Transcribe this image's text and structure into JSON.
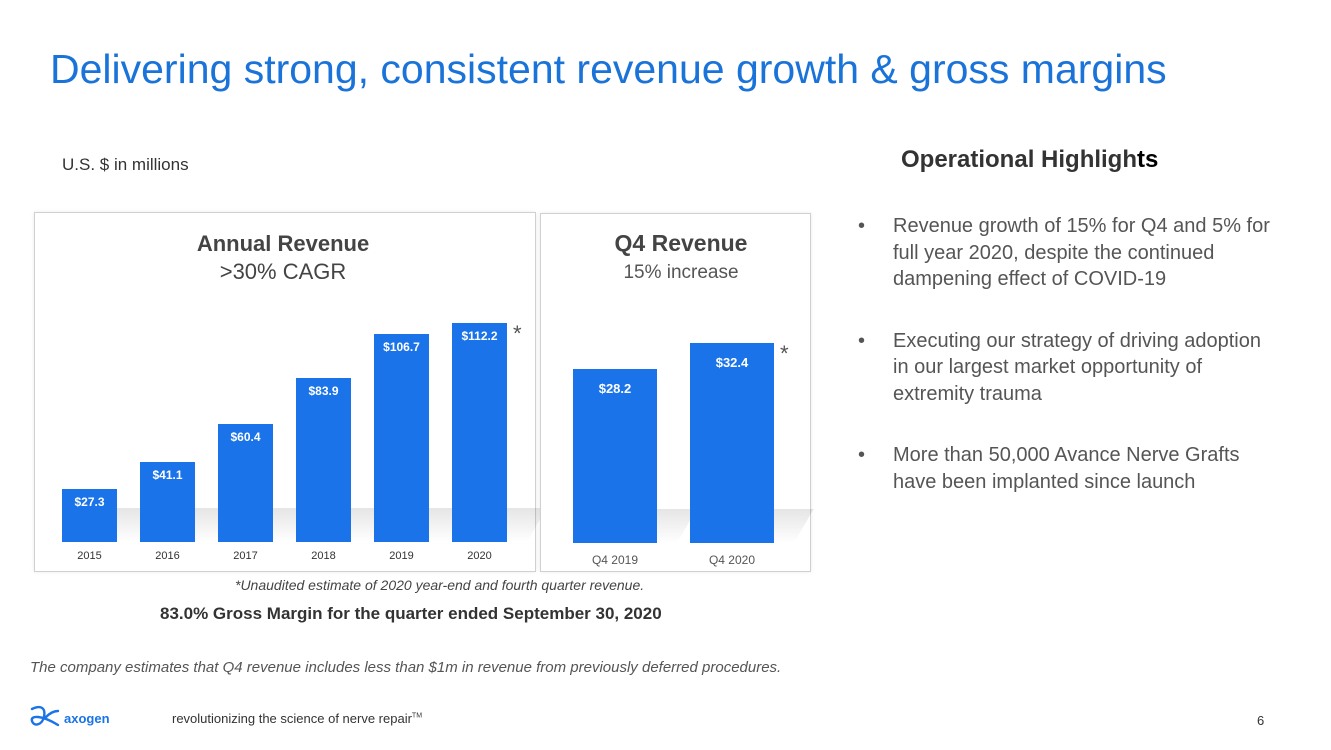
{
  "title": "Delivering strong, consistent revenue growth & gross margins",
  "units": "U.S. $ in millions",
  "colors": {
    "accent": "#1a73d9",
    "bar": "#1a73e8"
  },
  "chart_data": [
    {
      "type": "bar",
      "title": "Annual Revenue",
      "subtitle": ">30% CAGR",
      "categories": [
        "2015",
        "2016",
        "2017",
        "2018",
        "2019",
        "2020"
      ],
      "values": [
        27.3,
        41.1,
        60.4,
        83.9,
        106.7,
        112.2
      ],
      "labels": [
        "$27.3",
        "$41.1",
        "$60.4",
        "$83.9",
        "$106.7",
        "$112.2"
      ],
      "annotation": "*",
      "ylim": [
        0,
        125
      ],
      "xlabel": "",
      "ylabel": "",
      "grid": false
    },
    {
      "type": "bar",
      "title": "Q4 Revenue",
      "subtitle": "15% increase",
      "categories": [
        "Q4 2019",
        "Q4 2020"
      ],
      "values": [
        28.2,
        32.4
      ],
      "labels": [
        "$28.2",
        "$32.4"
      ],
      "annotation": "*",
      "ylim": [
        0,
        41
      ],
      "xlabel": "",
      "ylabel": "",
      "grid": false
    }
  ],
  "operational": {
    "title_main": "Operational Highligh",
    "title_end": "ts",
    "bullet_char": "•",
    "bullets": [
      "Revenue growth of 15% for Q4 and 5% for full year 2020, despite the continued dampening effect of COVID-19",
      "Executing our strategy of driving adoption in our largest market opportunity of extremity trauma",
      "More than 50,000 Avance Nerve Grafts have been implanted since launch"
    ]
  },
  "footnote": "*Unaudited estimate of 2020 year-end and fourth quarter revenue.",
  "gross_margin": "83.0% Gross Margin for the quarter ended September 30, 2020",
  "estimate_note": "The company estimates that Q4 revenue includes less than $1m in revenue from previously deferred procedures.",
  "footer": {
    "logo_text": "axogen",
    "tagline": "revolutionizing the science of nerve repair",
    "trademark": "TM",
    "page_number": "6"
  }
}
